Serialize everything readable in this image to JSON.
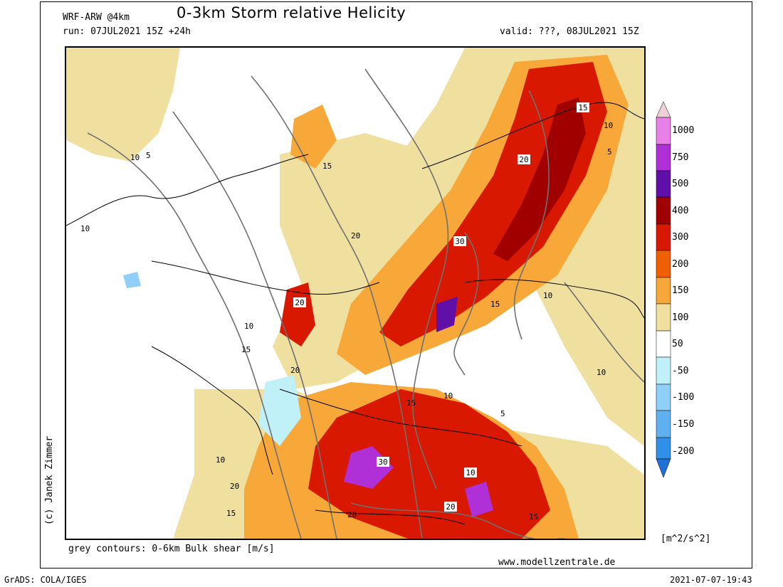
{
  "header": {
    "model": "WRF-ARW @4km",
    "title": "0-3km Storm relative Helicity",
    "run": "run: 07JUL2021 15Z +24h",
    "valid": "valid: ???, 08JUL2021 15Z"
  },
  "footer": {
    "contours_note": "grey contours: 0-6km Bulk shear [m/s]",
    "website": "www.modellzentrale.de",
    "grads": "GrADS: COLA/IGES",
    "timestamp": "2021-07-07-19:43",
    "credit": "(c) Janek Zimmer"
  },
  "colorbar": {
    "units": "[m^2/s^2]",
    "levels": [
      "1000",
      "750",
      "500",
      "400",
      "300",
      "200",
      "150",
      "100",
      "50",
      "-50",
      "-100",
      "-150",
      "-200"
    ],
    "colors": [
      "#f0d0d8",
      "#e880e8",
      "#b030d8",
      "#6010a8",
      "#a00000",
      "#d81800",
      "#f06000",
      "#f8a838",
      "#f0e0a0",
      "#ffffff",
      "#c0f0f8",
      "#90d0f8",
      "#60b0f0",
      "#3090e8",
      "#2070d8"
    ]
  },
  "map": {
    "shear_labels": [
      "5",
      "10",
      "15",
      "20",
      "30"
    ],
    "colors": {
      "land_background": "#ffffff",
      "shear_contour": "#707070",
      "borders": "#000000"
    }
  }
}
